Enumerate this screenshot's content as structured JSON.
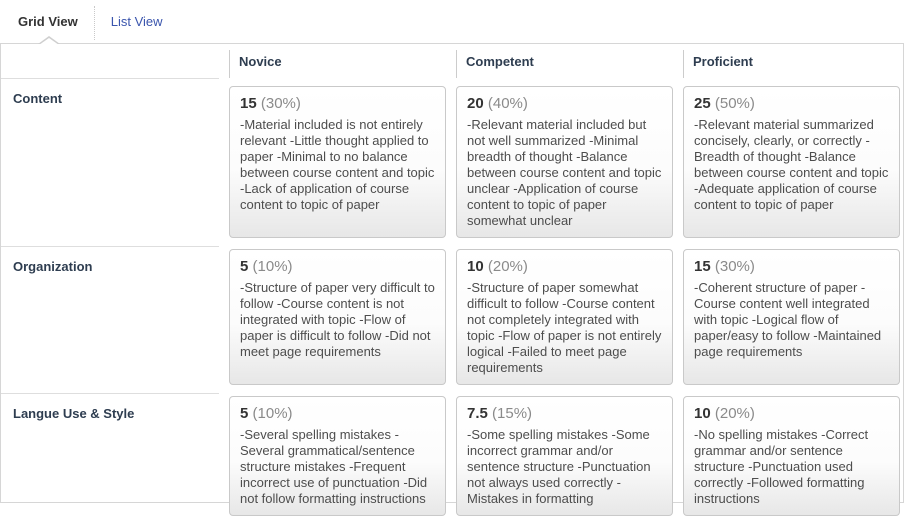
{
  "tabs": {
    "grid": "Grid View",
    "list": "List View"
  },
  "columns": [
    "Novice",
    "Competent",
    "Proficient"
  ],
  "rows": [
    {
      "label": "Content",
      "cells": [
        {
          "points": "15",
          "percent": "(30%)",
          "description": "-Material included is not entirely relevant -Little thought applied to paper -Minimal to no balance between course content and topic -Lack of application of course content to topic of paper"
        },
        {
          "points": "20",
          "percent": "(40%)",
          "description": "-Relevant material included but not well summarized -Minimal breadth of thought -Balance between course content and topic unclear -Application of course content to topic of paper somewhat unclear"
        },
        {
          "points": "25",
          "percent": "(50%)",
          "description": "-Relevant material summarized concisely, clearly, or correctly -Breadth of thought -Balance between course content and topic -Adequate application of course content to topic of paper"
        }
      ]
    },
    {
      "label": "Organization",
      "cells": [
        {
          "points": "5",
          "percent": "(10%)",
          "description": "-Structure of paper very difficult to follow -Course content is not integrated with topic -Flow of paper is difficult to follow -Did not meet page requirements"
        },
        {
          "points": "10",
          "percent": "(20%)",
          "description": "-Structure of paper somewhat difficult to follow -Course content not completely integrated with topic -Flow of paper is not entirely logical -Failed to meet page requirements"
        },
        {
          "points": "15",
          "percent": "(30%)",
          "description": "-Coherent structure of paper -Course content well integrated with topic -Logical flow of paper/easy to follow -Maintained page requirements"
        }
      ]
    },
    {
      "label": "Langue Use & Style",
      "cells": [
        {
          "points": "5",
          "percent": "(10%)",
          "description": "-Several spelling mistakes -Several grammatical/sentence structure mistakes -Frequent incorrect use of punctuation -Did not follow formatting instructions"
        },
        {
          "points": "7.5",
          "percent": "(15%)",
          "description": "-Some spelling mistakes -Some incorrect grammar and/or sentence structure -Punctuation not always used correctly -Mistakes in formatting"
        },
        {
          "points": "10",
          "percent": "(20%)",
          "description": "-No spelling mistakes -Correct grammar and/or sentence structure -Punctuation used correctly -Followed formatting instructions"
        }
      ]
    }
  ],
  "colors": {
    "link_blue": "#3a55ad",
    "heading_slate": "#2e3d50"
  }
}
